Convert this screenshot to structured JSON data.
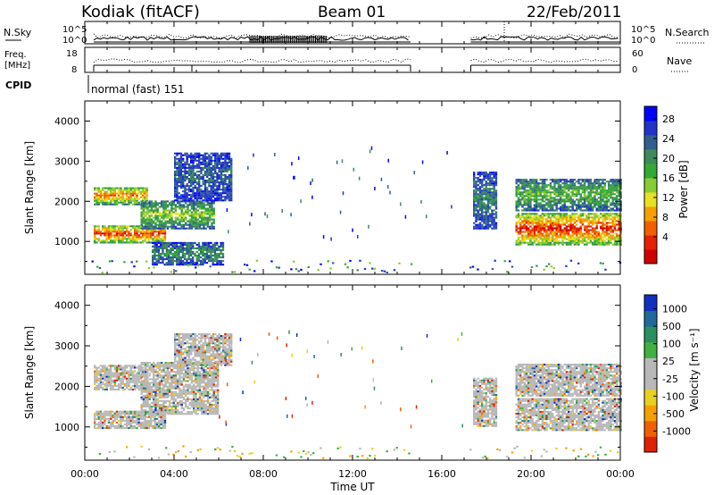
{
  "header": {
    "station": "Kodiak (fitACF)",
    "beam": "Beam 01",
    "date": "22/Feb/2011"
  },
  "top_panels": {
    "nsky_label": "N.Sky",
    "nsky_ticks": [
      "10^5",
      "10^0"
    ],
    "nsearch_label": "N.Search",
    "nsearch_ticks": [
      "10^5",
      "10^0"
    ],
    "freq_label": "Freq.",
    "freq_unit": "[MHz]",
    "freq_ticks": [
      "18",
      "8"
    ],
    "nave_label": "Nave",
    "nave_ticks": [
      "60",
      "0"
    ],
    "cpid_label": "CPID",
    "cpid_value": "normal (fast) 151"
  },
  "chart_data": [
    {
      "type": "heatmap",
      "name": "power",
      "ylabel": "Slant Range [km]",
      "yticks": [
        "4000",
        "3000",
        "2000",
        "1000"
      ],
      "ylim": [
        180,
        4500
      ],
      "xlim_hours": [
        0,
        24
      ],
      "colorbar": {
        "label": "Power [dB]",
        "ticks": [
          "28",
          "24",
          "20",
          "16",
          "12",
          "8",
          "4"
        ],
        "colors": [
          "#0000ff",
          "#2233cc",
          "#306090",
          "#3c8a5a",
          "#33aa33",
          "#88cc33",
          "#e8e020",
          "#f5a000",
          "#f06000",
          "#e62000",
          "#d00000"
        ]
      },
      "bands": [
        {
          "t0": 0.4,
          "t1": 3.6,
          "r0": 950,
          "r1": 1400,
          "level": 0.85
        },
        {
          "t0": 0.4,
          "t1": 2.8,
          "r0": 1900,
          "r1": 2350,
          "level": 0.75
        },
        {
          "t0": 2.5,
          "t1": 5.8,
          "r0": 1300,
          "r1": 2000,
          "level": 0.5
        },
        {
          "t0": 4.0,
          "t1": 6.6,
          "r0": 2000,
          "r1": 3200,
          "level": 0.25
        },
        {
          "t0": 3.0,
          "t1": 6.2,
          "r0": 400,
          "r1": 950,
          "level": 0.35
        },
        {
          "t0": 17.4,
          "t1": 18.4,
          "r0": 1300,
          "r1": 2700,
          "level": 0.3
        },
        {
          "t0": 19.3,
          "t1": 24.0,
          "r0": 900,
          "r1": 1700,
          "level": 0.9
        },
        {
          "t0": 19.3,
          "t1": 24.0,
          "r0": 1750,
          "r1": 2550,
          "level": 0.45
        }
      ]
    },
    {
      "type": "heatmap",
      "name": "velocity",
      "ylabel": "Slant Range [km]",
      "yticks": [
        "4000",
        "3000",
        "2000",
        "1000"
      ],
      "xlabel": "Time UT",
      "xticks": [
        "00:00",
        "04:00",
        "08:00",
        "12:00",
        "16:00",
        "20:00",
        "00:00"
      ],
      "ylim": [
        180,
        4500
      ],
      "xlim_hours": [
        0,
        24
      ],
      "colorbar": {
        "label": "Velocity [m s⁻¹]",
        "ticks": [
          "1000",
          "500",
          "100",
          "25",
          "-25",
          "-100",
          "-500",
          "-1000"
        ],
        "colors": [
          "#1030c0",
          "#206a9a",
          "#2a9060",
          "#40b040",
          "#b8b8b8",
          "#b8b8b8",
          "#e8d020",
          "#f5a000",
          "#f06000",
          "#e02000"
        ]
      },
      "bands": [
        {
          "t0": 0.4,
          "t1": 3.6,
          "r0": 950,
          "r1": 1400
        },
        {
          "t0": 0.4,
          "t1": 2.8,
          "r0": 1900,
          "r1": 2500
        },
        {
          "t0": 2.5,
          "t1": 6.0,
          "r0": 1300,
          "r1": 2600
        },
        {
          "t0": 4.0,
          "t1": 6.6,
          "r0": 2500,
          "r1": 3300
        },
        {
          "t0": 17.4,
          "t1": 18.4,
          "r0": 1000,
          "r1": 2200
        },
        {
          "t0": 19.3,
          "t1": 24.0,
          "r0": 900,
          "r1": 1700
        },
        {
          "t0": 19.3,
          "t1": 24.0,
          "r0": 1750,
          "r1": 2550
        }
      ]
    }
  ]
}
